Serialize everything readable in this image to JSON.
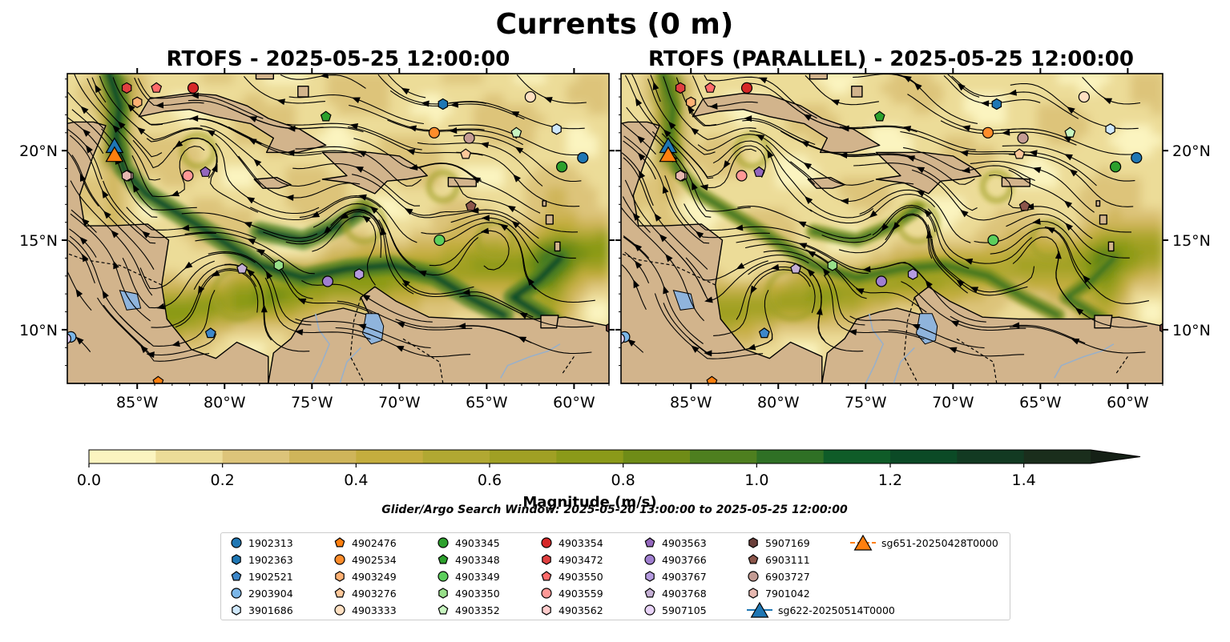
{
  "figure": {
    "suptitle": "Currents (0 m)",
    "search_window": "Glider/Argo Search Window: 2025-05-20 13:00:00 to 2025-05-25 12:00:00"
  },
  "chart_data": {
    "type": "heatmap",
    "variable": "surface current magnitude with streamlines",
    "panels": [
      {
        "title": "RTOFS - 2025-05-25 12:00:00"
      },
      {
        "title": "RTOFS (PARALLEL) - 2025-05-25 12:00:00"
      }
    ],
    "xlim": [
      -89,
      -58
    ],
    "ylim": [
      7,
      24.3
    ],
    "x_ticks": [
      {
        "value": -85,
        "label": "85°W"
      },
      {
        "value": -80,
        "label": "80°W"
      },
      {
        "value": -75,
        "label": "75°W"
      },
      {
        "value": -70,
        "label": "70°W"
      },
      {
        "value": -65,
        "label": "65°W"
      },
      {
        "value": -60,
        "label": "60°W"
      }
    ],
    "y_ticks": [
      {
        "value": 10,
        "label": "10°N"
      },
      {
        "value": 15,
        "label": "15°N"
      },
      {
        "value": 20,
        "label": "20°N"
      }
    ],
    "colorbar": {
      "label": "Magnitude (m/s)",
      "min": 0,
      "max": 1.5,
      "step": 0.1,
      "extend": "max",
      "ticks": [
        {
          "value": 0.0,
          "label": "0.0"
        },
        {
          "value": 0.2,
          "label": "0.2"
        },
        {
          "value": 0.4,
          "label": "0.4"
        },
        {
          "value": 0.6,
          "label": "0.6"
        },
        {
          "value": 0.8,
          "label": "0.8"
        },
        {
          "value": 1.0,
          "label": "1.0"
        },
        {
          "value": 1.2,
          "label": "1.2"
        },
        {
          "value": 1.4,
          "label": "1.4"
        }
      ],
      "colors": [
        "#fbf4c0",
        "#ecdc98",
        "#ddc47a",
        "#cfb55a",
        "#c4ad3e",
        "#b1a832",
        "#a0a024",
        "#8b9a19",
        "#6f8c17",
        "#4e7f1f",
        "#2f7025",
        "#0f5c28",
        "#0b4a26",
        "#123a22",
        "#1a2e1c",
        "#1b261a"
      ],
      "extend_color": "#152016"
    },
    "land_color": "#d2b48c",
    "lake_color": "#8fb4dc",
    "river_color": "#9ab0c8",
    "markers": [
      {
        "id": "1902313",
        "shape": "circle",
        "color": "#1f77b4",
        "lon": -59.5,
        "lat": 19.6
      },
      {
        "id": "1902363",
        "shape": "hexagon",
        "color": "#1f77b4",
        "lon": -67.5,
        "lat": 22.6
      },
      {
        "id": "1902521",
        "shape": "pentagon",
        "color": "#3d87c9",
        "lon": -80.8,
        "lat": 9.8
      },
      {
        "id": "2903904",
        "shape": "circle",
        "color": "#7bb6e8",
        "lon": -88.8,
        "lat": 9.6
      },
      {
        "id": "3901686",
        "shape": "hexagon",
        "color": "#cfe8fb",
        "lon": -61.0,
        "lat": 21.2
      },
      {
        "id": "4902476",
        "shape": "pentagon",
        "color": "#ff7f0e",
        "lon": -83.8,
        "lat": 7.1
      },
      {
        "id": "4902534",
        "shape": "circle",
        "color": "#ff8c2a",
        "lon": -68.0,
        "lat": 21.0
      },
      {
        "id": "4903249",
        "shape": "hexagon",
        "color": "#ffb173",
        "lon": -85.0,
        "lat": 22.7
      },
      {
        "id": "4903276",
        "shape": "pentagon",
        "color": "#ffc89a",
        "lon": -66.2,
        "lat": 19.8
      },
      {
        "id": "4903333",
        "shape": "circle",
        "color": "#ffe0c2",
        "lon": -62.5,
        "lat": 23.0
      },
      {
        "id": "4903345",
        "shape": "circle",
        "color": "#2ca02c",
        "lon": -60.7,
        "lat": 19.1
      },
      {
        "id": "4903348",
        "shape": "pentagon",
        "color": "#2ca02c",
        "lon": -74.2,
        "lat": 21.9
      },
      {
        "id": "4903349",
        "shape": "circle",
        "color": "#5ccf5c",
        "lon": -67.7,
        "lat": 15.0
      },
      {
        "id": "4903350",
        "shape": "hexagon",
        "color": "#98df8a",
        "lon": -76.9,
        "lat": 13.6
      },
      {
        "id": "4903352",
        "shape": "pentagon",
        "color": "#c8f5c0",
        "lon": -63.3,
        "lat": 21.0
      },
      {
        "id": "4903354",
        "shape": "circle",
        "color": "#d62728",
        "lon": -81.8,
        "lat": 23.5
      },
      {
        "id": "4903472",
        "shape": "hexagon",
        "color": "#e04040",
        "lon": -85.6,
        "lat": 23.5
      },
      {
        "id": "4903550",
        "shape": "pentagon",
        "color": "#ff6b6b",
        "lon": -83.9,
        "lat": 23.5
      },
      {
        "id": "4903559",
        "shape": "circle",
        "color": "#ff9896",
        "lon": -82.1,
        "lat": 18.6
      },
      {
        "id": "4903562",
        "shape": "hexagon",
        "color": "#ffcccc",
        "lon": -85.5,
        "lat": 18.6
      },
      {
        "id": "4903563",
        "shape": "pentagon",
        "color": "#9467bd",
        "lon": -81.1,
        "lat": 18.8
      },
      {
        "id": "4903766",
        "shape": "circle",
        "color": "#a07fd0",
        "lon": -74.1,
        "lat": 12.7
      },
      {
        "id": "4903767",
        "shape": "hexagon",
        "color": "#b59be0",
        "lon": -72.3,
        "lat": 13.1
      },
      {
        "id": "4903768",
        "shape": "pentagon",
        "color": "#c5b0d5",
        "lon": -79.0,
        "lat": 13.4
      },
      {
        "id": "5907105",
        "shape": "circle",
        "color": "#e8d3f7",
        "lon": -89.1,
        "lat": 9.5
      },
      {
        "id": "5907169",
        "shape": "hexagon",
        "color": "#6b3f3a",
        "lon": -57.9,
        "lat": 10.1
      },
      {
        "id": "6903111",
        "shape": "pentagon",
        "color": "#8c564b",
        "lon": -65.9,
        "lat": 16.9
      },
      {
        "id": "6903727",
        "shape": "circle",
        "color": "#c49c94",
        "lon": -66.0,
        "lat": 20.7
      },
      {
        "id": "7901042",
        "shape": "hexagon",
        "color": "#e7b8b0",
        "lon": -85.6,
        "lat": 18.6
      },
      {
        "id": "sg622-20250514T0000",
        "shape": "triangle",
        "color": "#1f77b4",
        "lon": -86.3,
        "lat": 20.3
      },
      {
        "id": "sg651-20250428T0000",
        "shape": "triangle",
        "color": "#ff7f0e",
        "lon": -86.3,
        "lat": 19.8
      }
    ]
  }
}
